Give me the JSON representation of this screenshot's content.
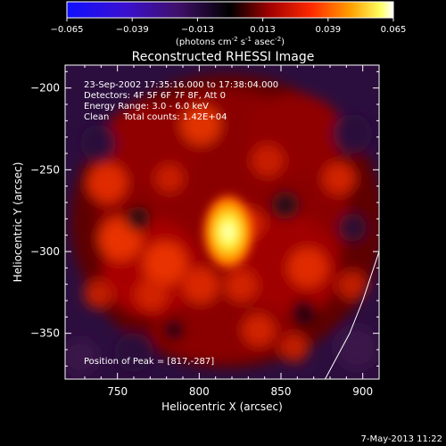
{
  "colorbar": {
    "ticks": [
      "-0.065",
      "-0.039",
      "-0.013",
      "0.013",
      "0.039",
      "0.065"
    ],
    "units_prefix": "(photons cm",
    "units_exp1": "-2",
    "units_mid": " s",
    "units_exp2": "-1",
    "units_mid2": " asec",
    "units_exp3": "-2",
    "units_suffix": ")",
    "range": [
      -0.065,
      0.065
    ]
  },
  "chart_data": {
    "type": "heatmap",
    "title": "Reconstructed RHESSI Image",
    "xlabel": "Heliocentric X (arcsec)",
    "ylabel": "Heliocentric Y (arcsec)",
    "xlim": [
      718,
      910
    ],
    "ylim": [
      -378,
      -186
    ],
    "x_ticks": [
      750,
      800,
      850,
      900
    ],
    "y_ticks": [
      -200,
      -250,
      -300,
      -350
    ],
    "x_tick_labels": [
      "750",
      "800",
      "850",
      "900"
    ],
    "y_tick_labels": [
      "−200",
      "−250",
      "−300",
      "−350"
    ],
    "peak": {
      "x": 817,
      "y": -287
    },
    "colormap": "hot",
    "limb_curve": [
      [
        877,
        -378
      ],
      [
        892,
        -350
      ],
      [
        900,
        -330
      ],
      [
        910,
        -300
      ]
    ]
  },
  "annotations": [
    "23-Sep-2002 17:35:16.000 to 17:38:04.000",
    "Detectors: 4F 5F 6F 7F 8F, Att 0",
    "Energy Range: 3.0 - 6.0 keV",
    "Clean     Total counts: 1.42E+04"
  ],
  "peak_label": "Position of Peak = [817,-287]",
  "footer_date": "7-May-2013 11:22"
}
